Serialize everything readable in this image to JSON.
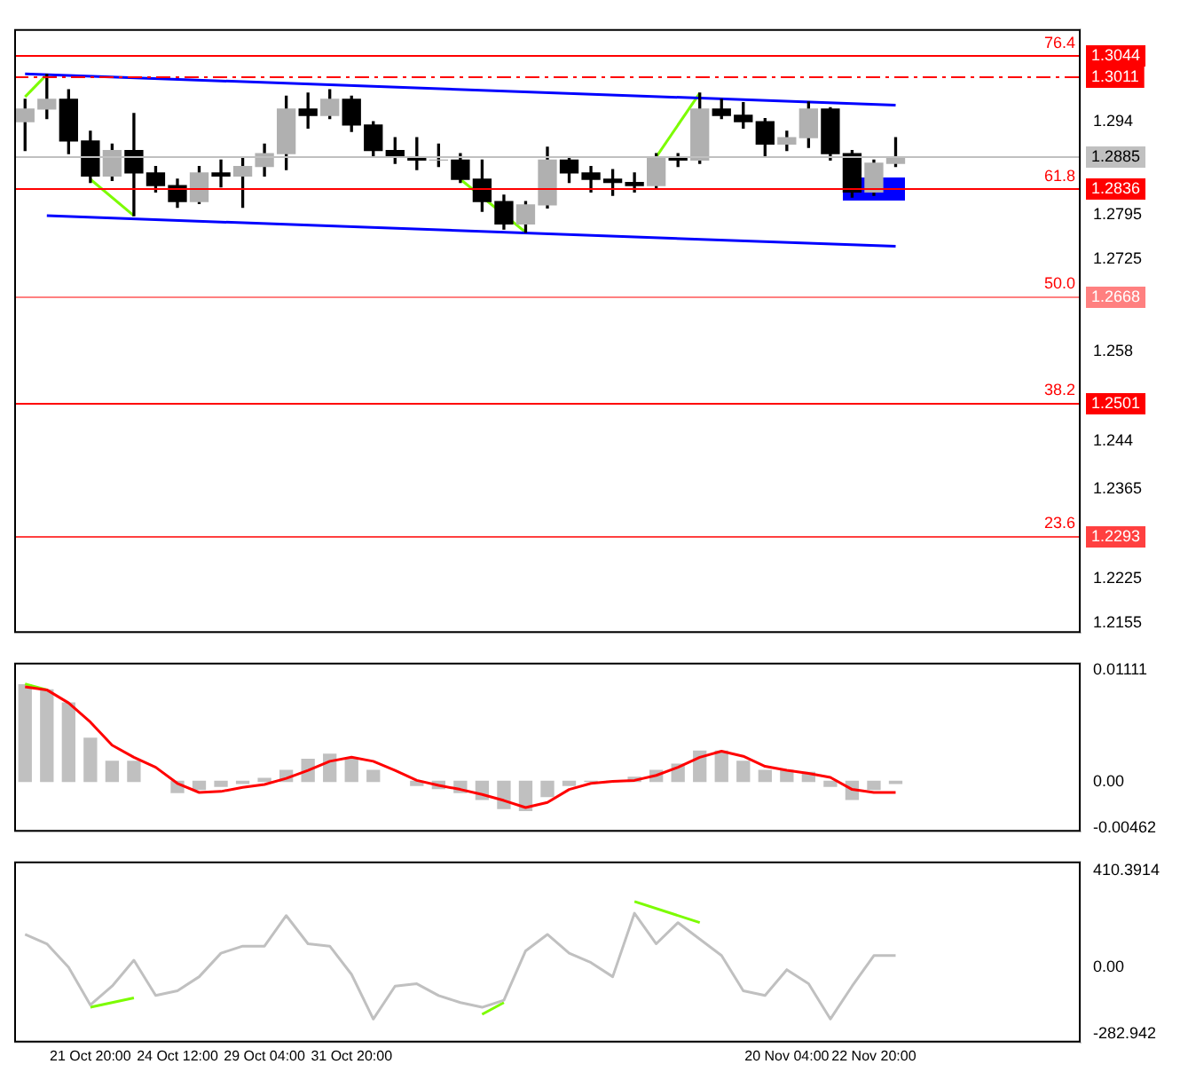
{
  "chart_data": [
    {
      "type": "candlestick",
      "color": "#000000",
      "colors": [
        "#b0b0b0",
        "#b0b0b0",
        "#000000",
        "#000000",
        "#b0b0b0",
        "#000000",
        "#000000",
        "#000000",
        "#b0b0b0",
        "#000000",
        "#b0b0b0",
        "#b0b0b0",
        "#b0b0b0",
        "#000000",
        "#b0b0b0",
        "#000000",
        "#000000",
        "#000000",
        "#000000",
        "#b0b0b0",
        "#000000",
        "#000000",
        "#000000",
        "#b0b0b0",
        "#b0b0b0",
        "#000000",
        "#000000",
        "#000000",
        "#000000",
        "#b0b0b0",
        "#000000",
        "#b0b0b0",
        "#000000",
        "#000000",
        "#000000",
        "#b0b0b0",
        "#b0b0b0",
        "#000000",
        "#000000",
        "#b0b0b0",
        "#b0b0b0",
        null,
        null,
        null,
        null,
        null,
        null,
        null,
        null
      ],
      "categories": [
        null,
        null,
        null,
        null,
        null,
        null,
        null,
        null,
        null,
        null,
        null,
        null,
        null,
        null,
        null,
        null,
        null,
        null,
        null,
        null,
        null,
        null,
        null,
        null,
        null,
        null,
        null,
        null,
        null,
        null,
        null,
        null,
        null,
        null,
        null,
        null,
        null,
        null,
        null,
        null,
        null,
        null,
        null,
        null,
        null,
        null,
        null,
        null,
        null
      ],
      "ohlc": [
        [
          1.294,
          1.2975,
          1.2895,
          1.296
        ],
        [
          1.296,
          1.3014,
          1.2945,
          1.2975
        ],
        [
          1.2975,
          1.299,
          1.289,
          1.291
        ],
        [
          1.291,
          1.2925,
          1.2845,
          1.2855
        ],
        [
          1.2855,
          1.2905,
          1.2848,
          1.2895
        ],
        [
          1.2895,
          1.2953,
          1.2793,
          1.286
        ],
        [
          1.286,
          1.287,
          1.283,
          1.284
        ],
        [
          1.284,
          1.285,
          1.2806,
          1.2815
        ],
        [
          1.2815,
          1.287,
          1.2812,
          1.286
        ],
        [
          1.286,
          1.288,
          1.2838,
          1.2855
        ],
        [
          1.2855,
          1.2885,
          1.2806,
          1.287
        ],
        [
          1.287,
          1.2905,
          1.2855,
          1.289
        ],
        [
          1.289,
          1.298,
          1.2865,
          1.296
        ],
        [
          1.296,
          1.2985,
          1.293,
          1.295
        ],
        [
          1.295,
          1.299,
          1.2945,
          1.2975
        ],
        [
          1.2975,
          1.298,
          1.2925,
          1.2935
        ],
        [
          1.2935,
          1.294,
          1.2885,
          1.2895
        ],
        [
          1.2895,
          1.2915,
          1.2875,
          1.2885
        ],
        [
          1.2885,
          1.2915,
          1.2865,
          1.288
        ],
        [
          1.288,
          1.2905,
          1.287,
          1.288
        ],
        [
          1.288,
          1.289,
          1.2845,
          1.285
        ],
        [
          1.285,
          1.288,
          1.28,
          1.2815
        ],
        [
          1.2815,
          1.2825,
          1.2772,
          1.278
        ],
        [
          1.278,
          1.2815,
          1.2767,
          1.281
        ],
        [
          1.281,
          1.29,
          1.2805,
          1.288
        ],
        [
          1.288,
          1.2885,
          1.2845,
          1.286
        ],
        [
          1.286,
          1.287,
          1.283,
          1.285
        ],
        [
          1.285,
          1.2865,
          1.2825,
          1.2845
        ],
        [
          1.2845,
          1.286,
          1.283,
          1.284
        ],
        [
          1.284,
          1.289,
          1.2835,
          1.2885
        ],
        [
          1.2885,
          1.289,
          1.287,
          1.288
        ],
        [
          1.288,
          1.2985,
          1.2875,
          1.296
        ],
        [
          1.296,
          1.2975,
          1.2945,
          1.295
        ],
        [
          1.295,
          1.297,
          1.293,
          1.294
        ],
        [
          1.294,
          1.2945,
          1.2885,
          1.2905
        ],
        [
          1.2905,
          1.2925,
          1.2895,
          1.2915
        ],
        [
          1.2915,
          1.2971,
          1.29,
          1.296
        ],
        [
          1.296,
          1.2962,
          1.288,
          1.289
        ],
        [
          1.289,
          1.2895,
          1.2822,
          1.283
        ],
        [
          1.283,
          1.288,
          1.2825,
          1.2875
        ],
        [
          1.2875,
          1.2915,
          1.287,
          1.2885
        ],
        null,
        null,
        null,
        null,
        null,
        null,
        null,
        null
      ],
      "series": [
        {
          "type": "line",
          "color": "#0000ff",
          "values": [
            1.3015,
            null,
            null,
            null,
            null,
            null,
            null,
            null,
            null,
            null,
            null,
            null,
            null,
            null,
            null,
            null,
            null,
            null,
            null,
            null,
            null,
            null,
            null,
            null,
            null,
            null,
            null,
            null,
            null,
            null,
            null,
            null,
            null,
            null,
            null,
            null,
            null,
            null,
            null,
            null,
            1.2966,
            null,
            null,
            null,
            null,
            null,
            null,
            null,
            null
          ]
        },
        {
          "type": "line",
          "color": "#0000ff",
          "values": [
            null,
            1.2793,
            null,
            null,
            null,
            null,
            null,
            null,
            null,
            null,
            null,
            null,
            null,
            null,
            null,
            null,
            null,
            null,
            null,
            null,
            null,
            null,
            null,
            null,
            null,
            null,
            null,
            null,
            null,
            null,
            null,
            null,
            null,
            null,
            null,
            null,
            null,
            null,
            null,
            null,
            1.2745,
            null,
            null,
            null,
            null,
            null,
            null,
            null,
            null
          ]
        },
        {
          "type": "line",
          "color": "#7cfc00",
          "values": [
            1.2979,
            1.3014,
            null,
            null,
            null,
            null,
            null,
            null,
            null,
            null,
            null,
            null,
            null,
            null,
            null,
            null,
            null,
            null,
            null,
            null,
            null,
            null,
            null,
            null,
            null,
            null,
            null,
            null,
            null,
            null,
            null,
            null,
            null,
            null,
            null,
            null,
            null,
            null,
            null,
            null,
            null,
            null,
            null,
            null,
            null,
            null,
            null,
            null,
            null
          ]
        },
        {
          "type": "line",
          "color": "#7cfc00",
          "values": [
            null,
            null,
            null,
            1.285,
            null,
            1.2793,
            null,
            null,
            null,
            null,
            null,
            null,
            null,
            null,
            null,
            null,
            null,
            null,
            null,
            null,
            null,
            null,
            null,
            null,
            null,
            null,
            null,
            null,
            null,
            null,
            null,
            null,
            null,
            null,
            null,
            null,
            null,
            null,
            null,
            null,
            null,
            null,
            null,
            null,
            null,
            null,
            null,
            null,
            null
          ]
        },
        {
          "type": "line",
          "color": "#7cfc00",
          "values": [
            null,
            null,
            null,
            null,
            null,
            null,
            null,
            null,
            null,
            null,
            null,
            null,
            null,
            null,
            null,
            null,
            null,
            null,
            null,
            null,
            1.285,
            null,
            null,
            1.2767,
            null,
            null,
            null,
            null,
            null,
            null,
            null,
            null,
            null,
            null,
            null,
            null,
            null,
            null,
            null,
            null,
            null,
            null,
            null,
            null,
            null,
            null,
            null,
            null,
            null
          ]
        },
        {
          "type": "line",
          "color": "#7cfc00",
          "values": [
            null,
            null,
            null,
            null,
            null,
            null,
            null,
            null,
            null,
            null,
            null,
            null,
            null,
            null,
            null,
            null,
            null,
            null,
            null,
            null,
            null,
            null,
            null,
            null,
            null,
            null,
            null,
            null,
            null,
            1.2885,
            null,
            1.2985,
            null,
            null,
            null,
            null,
            null,
            null,
            null,
            null,
            null,
            null,
            null,
            null,
            null,
            null,
            null,
            null,
            null
          ]
        }
      ],
      "ylim": [
        1.214,
        1.3085
      ],
      "yticks": [
        1.2155,
        1.2225,
        1.2365,
        1.244,
        1.258,
        1.2725,
        1.2795,
        1.294
      ],
      "tick_labels": "y",
      "ref_lines": [
        {
          "axis": "y",
          "value": 1.3044,
          "label": "1.3044",
          "color": "#ff0000"
        },
        {
          "axis": "y",
          "value": 1.3011,
          "label": "1.3011",
          "color": "#ff0000",
          "line_style": "dashed"
        },
        {
          "axis": "y",
          "value": 1.2885,
          "label": "1.2885",
          "color": "#c0c0c0"
        },
        {
          "axis": "y",
          "value": 1.2836,
          "label": "1.2836",
          "color": "#ff0000"
        },
        {
          "axis": "y",
          "value": 1.2668,
          "label": "1.2668",
          "color": "#ff8080"
        },
        {
          "axis": "y",
          "value": 1.2501,
          "label": "1.2501",
          "color": "#ff0000"
        },
        {
          "axis": "y",
          "value": 1.2293,
          "label": "1.2293",
          "color": "#ff4040"
        }
      ],
      "annotations": [
        {
          "text": "76.4",
          "y": 1.3044
        },
        {
          "text": "61.8",
          "y": 1.2836
        },
        {
          "text": "50.0",
          "y": 1.2668
        },
        {
          "text": "38.2",
          "y": 1.2501
        },
        {
          "text": "23.6",
          "y": 1.2293
        }
      ]
    },
    {
      "type": "bar",
      "categories": [
        null,
        null,
        null,
        null,
        null,
        null,
        null,
        null,
        null,
        null,
        null,
        null,
        null,
        null,
        null,
        null,
        null,
        null,
        null,
        null,
        null,
        null,
        null,
        null,
        null,
        null,
        null,
        null,
        null,
        null,
        null,
        null,
        null,
        null,
        null,
        null,
        null,
        null,
        null,
        null,
        null,
        null,
        null,
        null,
        null,
        null,
        null,
        null,
        null
      ],
      "series": [
        {
          "type": "bar",
          "color": "#c0c0c0",
          "values": [
            0.0096,
            0.0091,
            0.0078,
            0.0043,
            0.002,
            0.002,
            null,
            -0.0011,
            -0.0008,
            -0.0005,
            -0.0002,
            0.0003,
            0.0011,
            0.0022,
            0.0027,
            0.0022,
            0.0011,
            null,
            -0.0004,
            -0.0007,
            -0.0011,
            -0.0018,
            -0.0027,
            -0.0029,
            -0.0015,
            -0.0004,
            0.0,
            0.0,
            0.0004,
            0.0011,
            0.0017,
            0.003,
            0.003,
            0.002,
            0.0011,
            0.0011,
            0.0009,
            -0.0005,
            -0.0018,
            -0.0008,
            -0.0002,
            null,
            null,
            null,
            null,
            null,
            null,
            null,
            null
          ]
        },
        {
          "type": "line",
          "color": "#ff0000",
          "values": [
            0.0094,
            0.0091,
            0.0078,
            0.0059,
            0.0036,
            0.0024,
            0.0014,
            -0.0002,
            -0.0011,
            -0.001,
            -0.0006,
            -0.0003,
            0.0003,
            0.0011,
            0.002,
            0.0024,
            0.002,
            0.0011,
            0.0001,
            -0.0004,
            -0.0008,
            -0.0013,
            -0.0019,
            -0.0026,
            -0.0021,
            -0.0008,
            -0.0002,
            0.0,
            0.0001,
            0.0006,
            0.0014,
            0.0024,
            0.003,
            0.0025,
            0.0015,
            0.0011,
            0.0008,
            0.0004,
            -0.0008,
            -0.0011,
            -0.0011,
            null,
            null,
            null,
            null,
            null,
            null,
            null,
            null
          ]
        },
        {
          "type": "line",
          "color": "#7cfc00",
          "values": [
            0.0097,
            0.0091,
            null,
            null,
            null,
            null,
            null,
            null,
            null,
            null,
            null,
            null,
            null,
            null,
            null,
            null,
            null,
            null,
            null,
            null,
            null,
            null,
            null,
            null,
            null,
            null,
            null,
            null,
            null,
            null,
            null,
            null,
            null,
            null,
            null,
            null,
            null,
            null,
            null,
            null,
            null,
            null,
            null,
            null,
            null,
            null,
            null,
            null,
            null
          ]
        }
      ],
      "ylim": [
        -0.005,
        0.0118
      ],
      "yticks": [
        -0.00462,
        {
          "value": 0,
          "label": "0.00"
        },
        0.01111
      ],
      "tick_labels": "y"
    },
    {
      "type": "line",
      "categories": [
        null,
        null,
        null,
        "21 Oct 20:00",
        null,
        null,
        null,
        "24 Oct 12:00",
        null,
        null,
        null,
        "29 Oct 04:00",
        null,
        null,
        null,
        "31 Oct 20:00",
        null,
        null,
        null,
        null,
        null,
        null,
        null,
        null,
        null,
        null,
        null,
        null,
        null,
        null,
        null,
        null,
        null,
        null,
        null,
        "20 Nov 04:00",
        null,
        null,
        null,
        "22 Nov 20:00",
        null,
        null,
        null,
        null,
        null,
        null,
        null,
        null,
        null
      ],
      "series": [
        {
          "type": "line",
          "color": "#c0c0c0",
          "values": [
            140,
            100,
            0,
            -160,
            -80,
            30,
            -120,
            -100,
            -40,
            60,
            90,
            90,
            220,
            100,
            90,
            -30,
            -220,
            -80,
            -70,
            -120,
            -150,
            -170,
            -140,
            70,
            140,
            60,
            20,
            -40,
            230,
            100,
            190,
            120,
            50,
            -100,
            -120,
            -10,
            -70,
            -220,
            -80,
            50,
            50,
            null,
            null,
            null,
            null,
            null,
            null,
            null,
            null
          ]
        },
        {
          "type": "line",
          "color": "#7cfc00",
          "values": [
            null,
            null,
            null,
            -170,
            null,
            -130,
            null,
            null,
            null,
            null,
            null,
            null,
            null,
            null,
            null,
            null,
            null,
            null,
            null,
            null,
            null,
            null,
            null,
            null,
            null,
            null,
            null,
            null,
            null,
            null,
            null,
            null,
            null,
            null,
            null,
            null,
            null,
            null,
            null,
            null,
            null,
            null,
            null,
            null,
            null,
            null,
            null,
            null,
            null
          ]
        },
        {
          "type": "line",
          "color": "#7cfc00",
          "values": [
            null,
            null,
            null,
            null,
            null,
            null,
            null,
            null,
            null,
            null,
            null,
            null,
            null,
            null,
            null,
            null,
            null,
            null,
            null,
            null,
            null,
            -200,
            -150,
            null,
            null,
            null,
            null,
            null,
            null,
            null,
            null,
            null,
            null,
            null,
            null,
            null,
            null,
            null,
            null,
            null,
            null,
            null,
            null,
            null,
            null,
            null,
            null,
            null,
            null
          ]
        },
        {
          "type": "line",
          "color": "#7cfc00",
          "values": [
            null,
            null,
            null,
            null,
            null,
            null,
            null,
            null,
            null,
            null,
            null,
            null,
            null,
            null,
            null,
            null,
            null,
            null,
            null,
            null,
            null,
            null,
            null,
            null,
            null,
            null,
            null,
            null,
            280,
            null,
            null,
            190,
            null,
            null,
            null,
            null,
            null,
            null,
            null,
            null,
            null,
            null,
            null,
            null,
            null,
            null,
            null,
            null,
            null
          ]
        }
      ],
      "ylim": [
        -320,
        450
      ],
      "yticks": [
        -282.942,
        {
          "value": 0,
          "label": "0.00"
        },
        410.3914
      ]
    }
  ]
}
